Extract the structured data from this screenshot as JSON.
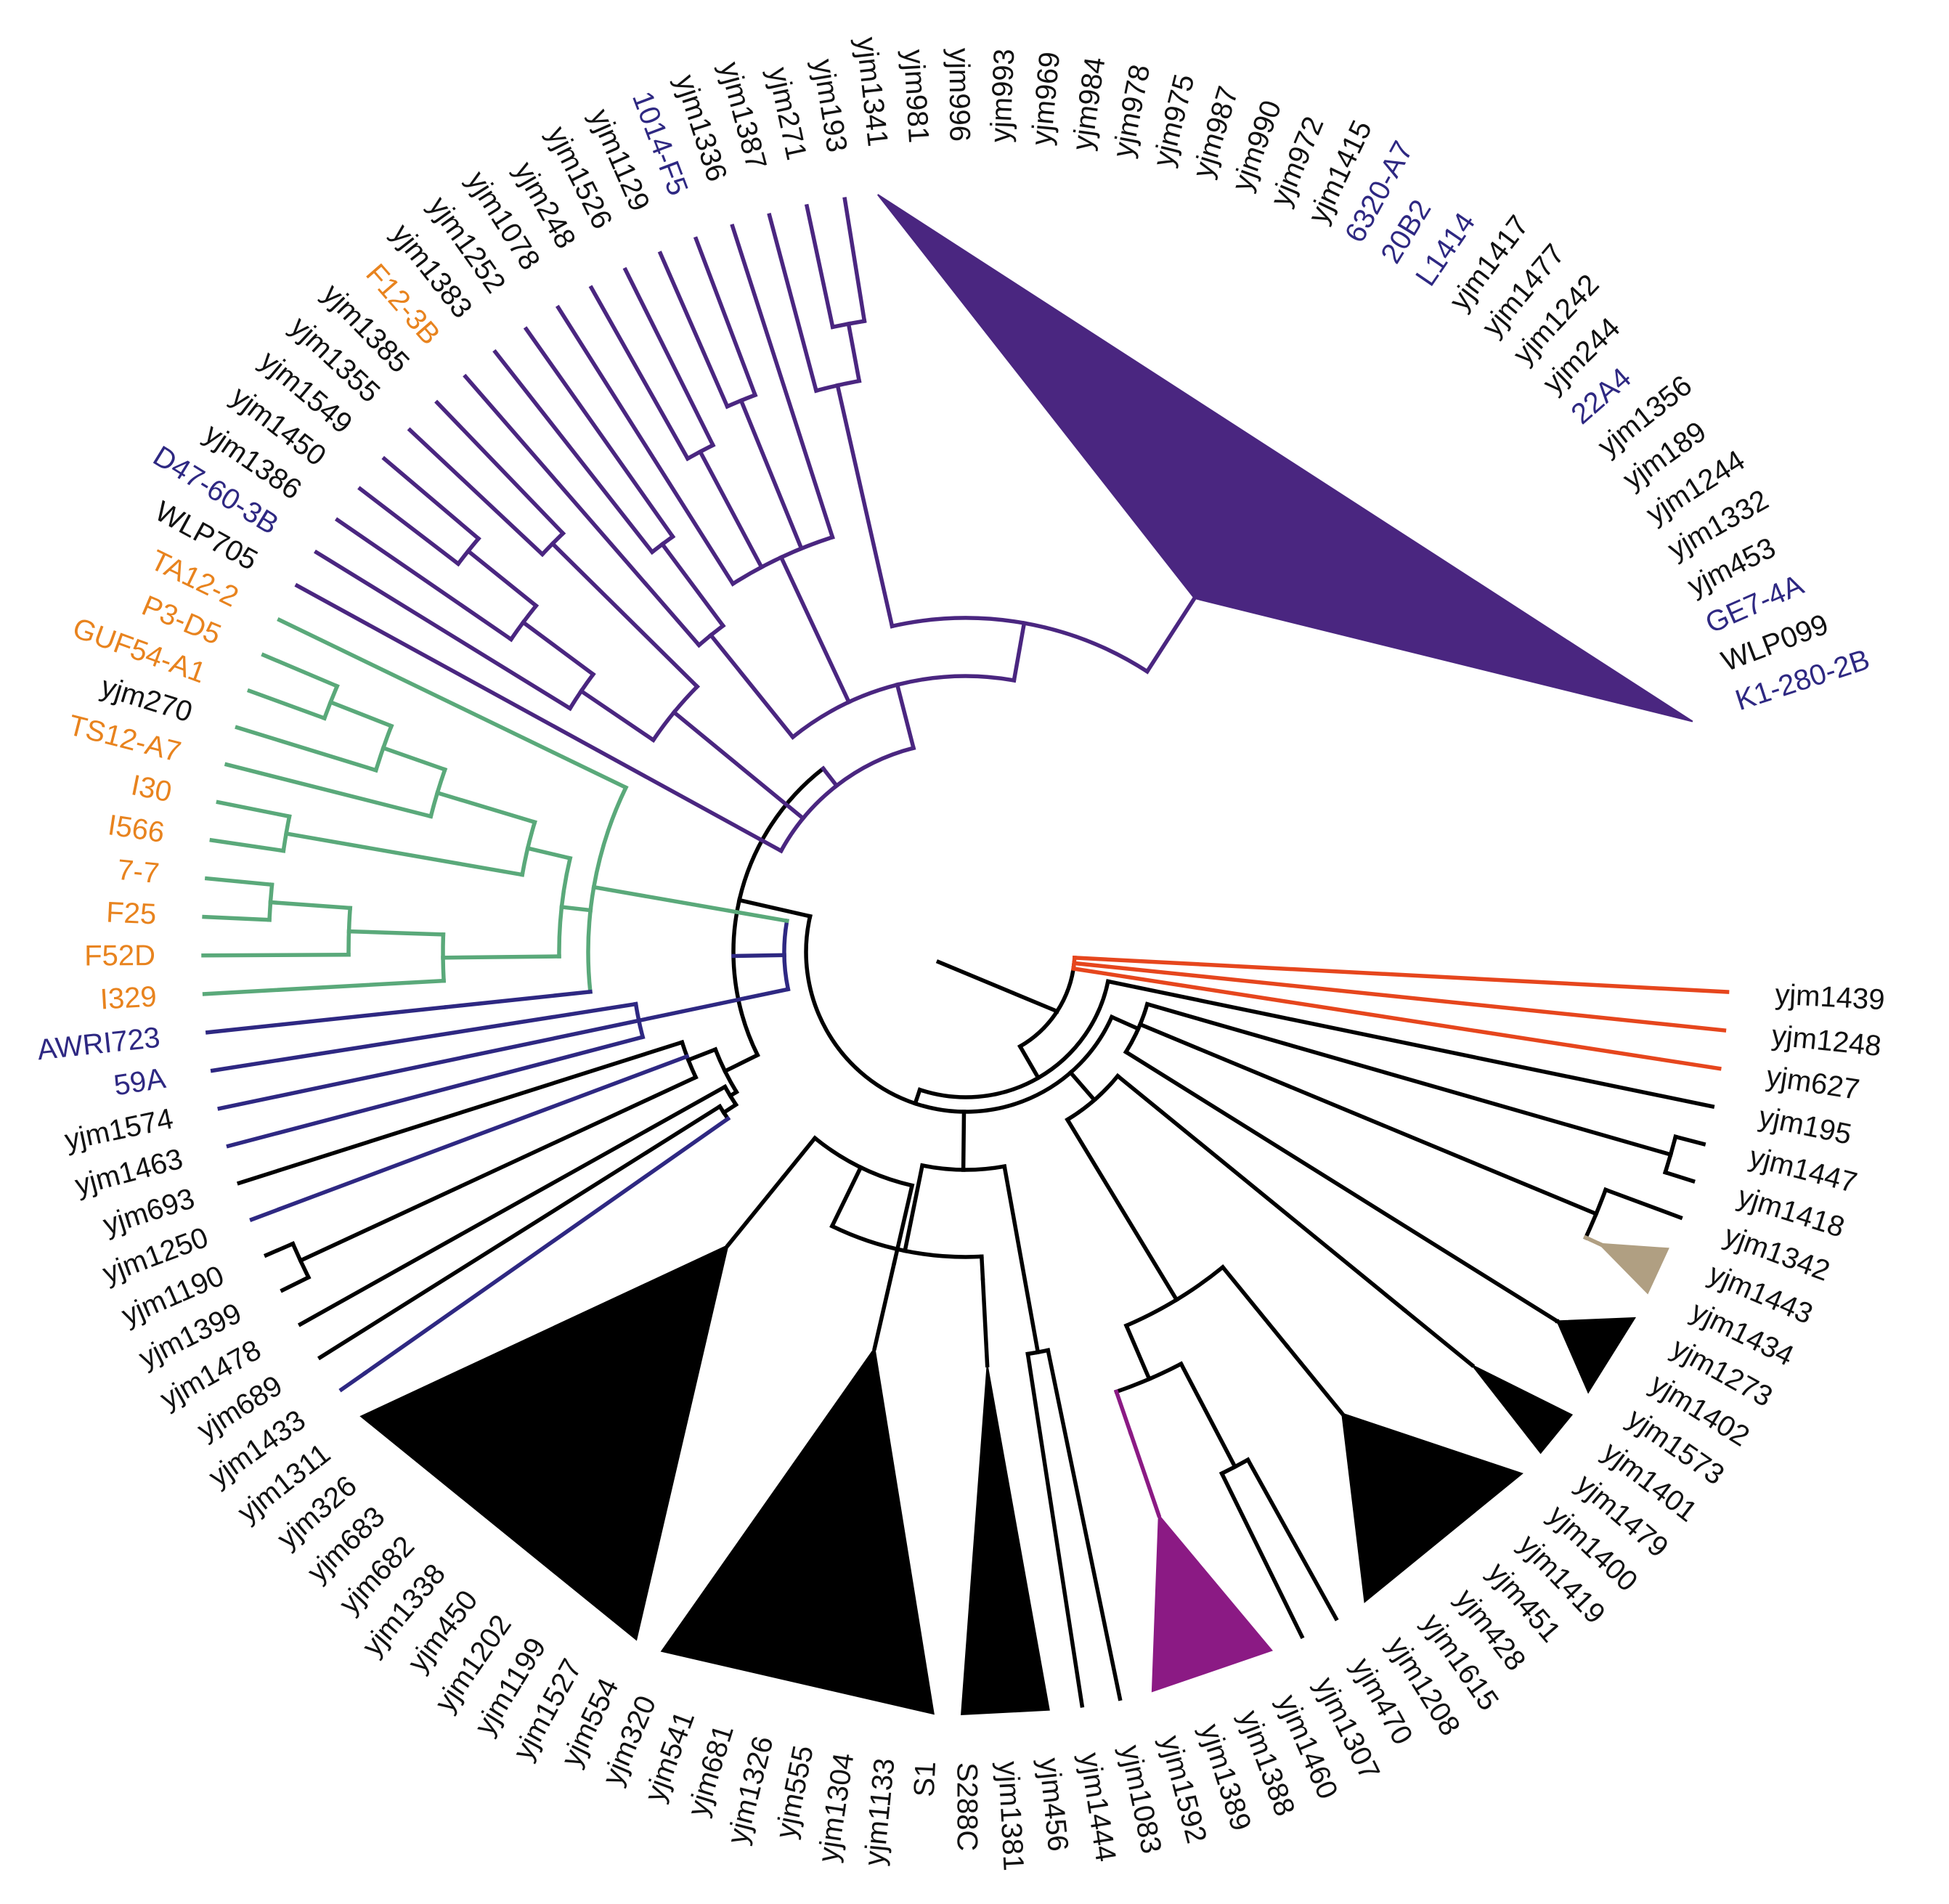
{
  "colors": {
    "black": "#000000",
    "navy": "#2e2882",
    "purple": "#4a2680",
    "green": "#5aa97a",
    "orange": "#e8831e",
    "red": "#e6461d",
    "pink": "#f4c9c9",
    "magenta": "#8b1a84",
    "tan": "#b09f82",
    "label_black": "#111111",
    "label_blue": "#2e2882",
    "label_orange": "#e8831e"
  },
  "leaves": [
    {
      "label": "yjm1439",
      "c": "label_black"
    },
    {
      "label": "yjm1248",
      "c": "label_black"
    },
    {
      "label": "yjm627",
      "c": "label_black"
    },
    {
      "label": "yjm195",
      "c": "label_black"
    },
    {
      "label": "yjm1447",
      "c": "label_black"
    },
    {
      "label": "yjm1418",
      "c": "label_black"
    },
    {
      "label": "yjm1342",
      "c": "label_black"
    },
    {
      "label": "yjm1443",
      "c": "label_black"
    },
    {
      "label": "yjm1434",
      "c": "label_black"
    },
    {
      "label": "yjm1273",
      "c": "label_black"
    },
    {
      "label": "yjm1402",
      "c": "label_black"
    },
    {
      "label": "yjm1573",
      "c": "label_black"
    },
    {
      "label": "yjm1401",
      "c": "label_black"
    },
    {
      "label": "yjm1479",
      "c": "label_black"
    },
    {
      "label": "yjm1400",
      "c": "label_black"
    },
    {
      "label": "yjm1419",
      "c": "label_black"
    },
    {
      "label": "yjm451",
      "c": "label_black"
    },
    {
      "label": "yjm428",
      "c": "label_black"
    },
    {
      "label": "yjm1615",
      "c": "label_black"
    },
    {
      "label": "yjm1208",
      "c": "label_black"
    },
    {
      "label": "yjm470",
      "c": "label_black"
    },
    {
      "label": "yjm1307",
      "c": "label_black"
    },
    {
      "label": "yjm1460",
      "c": "label_black"
    },
    {
      "label": "yjm1388",
      "c": "label_black"
    },
    {
      "label": "yjm1389",
      "c": "label_black"
    },
    {
      "label": "yjm1592",
      "c": "label_black"
    },
    {
      "label": "yjm1083",
      "c": "label_black"
    },
    {
      "label": "yjm1444",
      "c": "label_black"
    },
    {
      "label": "yjm456",
      "c": "label_black"
    },
    {
      "label": "yjm1381",
      "c": "label_black"
    },
    {
      "label": "S288C",
      "c": "label_black"
    },
    {
      "label": "S1",
      "c": "label_black"
    },
    {
      "label": "yjm1133",
      "c": "label_black"
    },
    {
      "label": "yjm1304",
      "c": "label_black"
    },
    {
      "label": "yjm555",
      "c": "label_black"
    },
    {
      "label": "yjm1326",
      "c": "label_black"
    },
    {
      "label": "yjm681",
      "c": "label_black"
    },
    {
      "label": "yjm541",
      "c": "label_black"
    },
    {
      "label": "yjm320",
      "c": "label_black"
    },
    {
      "label": "yjm554",
      "c": "label_black"
    },
    {
      "label": "yjm1527",
      "c": "label_black"
    },
    {
      "label": "yjm1199",
      "c": "label_black"
    },
    {
      "label": "yjm1202",
      "c": "label_black"
    },
    {
      "label": "yjm450",
      "c": "label_black"
    },
    {
      "label": "yjm1338",
      "c": "label_black"
    },
    {
      "label": "yjm682",
      "c": "label_black"
    },
    {
      "label": "yjm683",
      "c": "label_black"
    },
    {
      "label": "yjm326",
      "c": "label_black"
    },
    {
      "label": "yjm1311",
      "c": "label_black"
    },
    {
      "label": "yjm1433",
      "c": "label_black"
    },
    {
      "label": "yjm689",
      "c": "label_black"
    },
    {
      "label": "yjm1478",
      "c": "label_black"
    },
    {
      "label": "yjm1399",
      "c": "label_black"
    },
    {
      "label": "yjm1190",
      "c": "label_black"
    },
    {
      "label": "yjm1250",
      "c": "label_black"
    },
    {
      "label": "yjm693",
      "c": "label_black"
    },
    {
      "label": "yjm1463",
      "c": "label_black"
    },
    {
      "label": "yjm1574",
      "c": "label_black"
    },
    {
      "label": "59A",
      "c": "label_blue"
    },
    {
      "label": "AWRI723",
      "c": "label_blue"
    },
    {
      "label": "I329",
      "c": "label_orange"
    },
    {
      "label": "F52D",
      "c": "label_orange"
    },
    {
      "label": "F25",
      "c": "label_orange"
    },
    {
      "label": "7-7",
      "c": "label_orange"
    },
    {
      "label": "I566",
      "c": "label_orange"
    },
    {
      "label": "I30",
      "c": "label_orange"
    },
    {
      "label": "TS12-A7",
      "c": "label_orange"
    },
    {
      "label": "yjm270",
      "c": "label_black"
    },
    {
      "label": "GUF54-A1",
      "c": "label_orange"
    },
    {
      "label": "P3-D5",
      "c": "label_orange"
    },
    {
      "label": "TA12-2",
      "c": "label_orange"
    },
    {
      "label": "WLP705",
      "c": "label_black"
    },
    {
      "label": "D47-60-3B",
      "c": "label_blue"
    },
    {
      "label": "yjm1386",
      "c": "label_black"
    },
    {
      "label": "yjm1450",
      "c": "label_black"
    },
    {
      "label": "yjm1549",
      "c": "label_black"
    },
    {
      "label": "yjm1355",
      "c": "label_black"
    },
    {
      "label": "yjm1385",
      "c": "label_black"
    },
    {
      "label": "F12-3B",
      "c": "label_orange"
    },
    {
      "label": "yjm1383",
      "c": "label_black"
    },
    {
      "label": "yjm1252",
      "c": "label_black"
    },
    {
      "label": "yjm1078",
      "c": "label_black"
    },
    {
      "label": "yjm248",
      "c": "label_black"
    },
    {
      "label": "yjm1526",
      "c": "label_black"
    },
    {
      "label": "yjm1129",
      "c": "label_black"
    },
    {
      "label": "1014-F5",
      "c": "label_blue"
    },
    {
      "label": "yjm1336",
      "c": "label_black"
    },
    {
      "label": "yjm1387",
      "c": "label_black"
    },
    {
      "label": "yjm271",
      "c": "label_black"
    },
    {
      "label": "yjm193",
      "c": "label_black"
    },
    {
      "label": "yjm1341",
      "c": "label_black"
    },
    {
      "label": "yjm981",
      "c": "label_black"
    },
    {
      "label": "yjm996",
      "c": "label_black"
    },
    {
      "label": "yjm993",
      "c": "label_black"
    },
    {
      "label": "yjm969",
      "c": "label_black"
    },
    {
      "label": "yjm984",
      "c": "label_black"
    },
    {
      "label": "yjm978",
      "c": "label_black"
    },
    {
      "label": "yjm975",
      "c": "label_black"
    },
    {
      "label": "yjm987",
      "c": "label_black"
    },
    {
      "label": "yjm990",
      "c": "label_black"
    },
    {
      "label": "yjm972",
      "c": "label_black"
    },
    {
      "label": "yjm1415",
      "c": "label_black"
    },
    {
      "label": "6320-A7",
      "c": "label_blue"
    },
    {
      "label": "20B2",
      "c": "label_blue"
    },
    {
      "label": "L1414",
      "c": "label_blue"
    },
    {
      "label": "yjm1417",
      "c": "label_black"
    },
    {
      "label": "yjm1477",
      "c": "label_black"
    },
    {
      "label": "yjm1242",
      "c": "label_black"
    },
    {
      "label": "yjm244",
      "c": "label_black"
    },
    {
      "label": "22A4",
      "c": "label_blue"
    },
    {
      "label": "yjm1356",
      "c": "label_black"
    },
    {
      "label": "yjm189",
      "c": "label_black"
    },
    {
      "label": "yjm1244",
      "c": "label_black"
    },
    {
      "label": "yjm1332",
      "c": "label_black"
    },
    {
      "label": "yjm453",
      "c": "label_black"
    },
    {
      "label": "GE7-4A",
      "c": "label_blue"
    },
    {
      "label": "WLP099",
      "c": "label_black"
    },
    {
      "label": "K1-280-2B",
      "c": "label_blue"
    }
  ]
}
